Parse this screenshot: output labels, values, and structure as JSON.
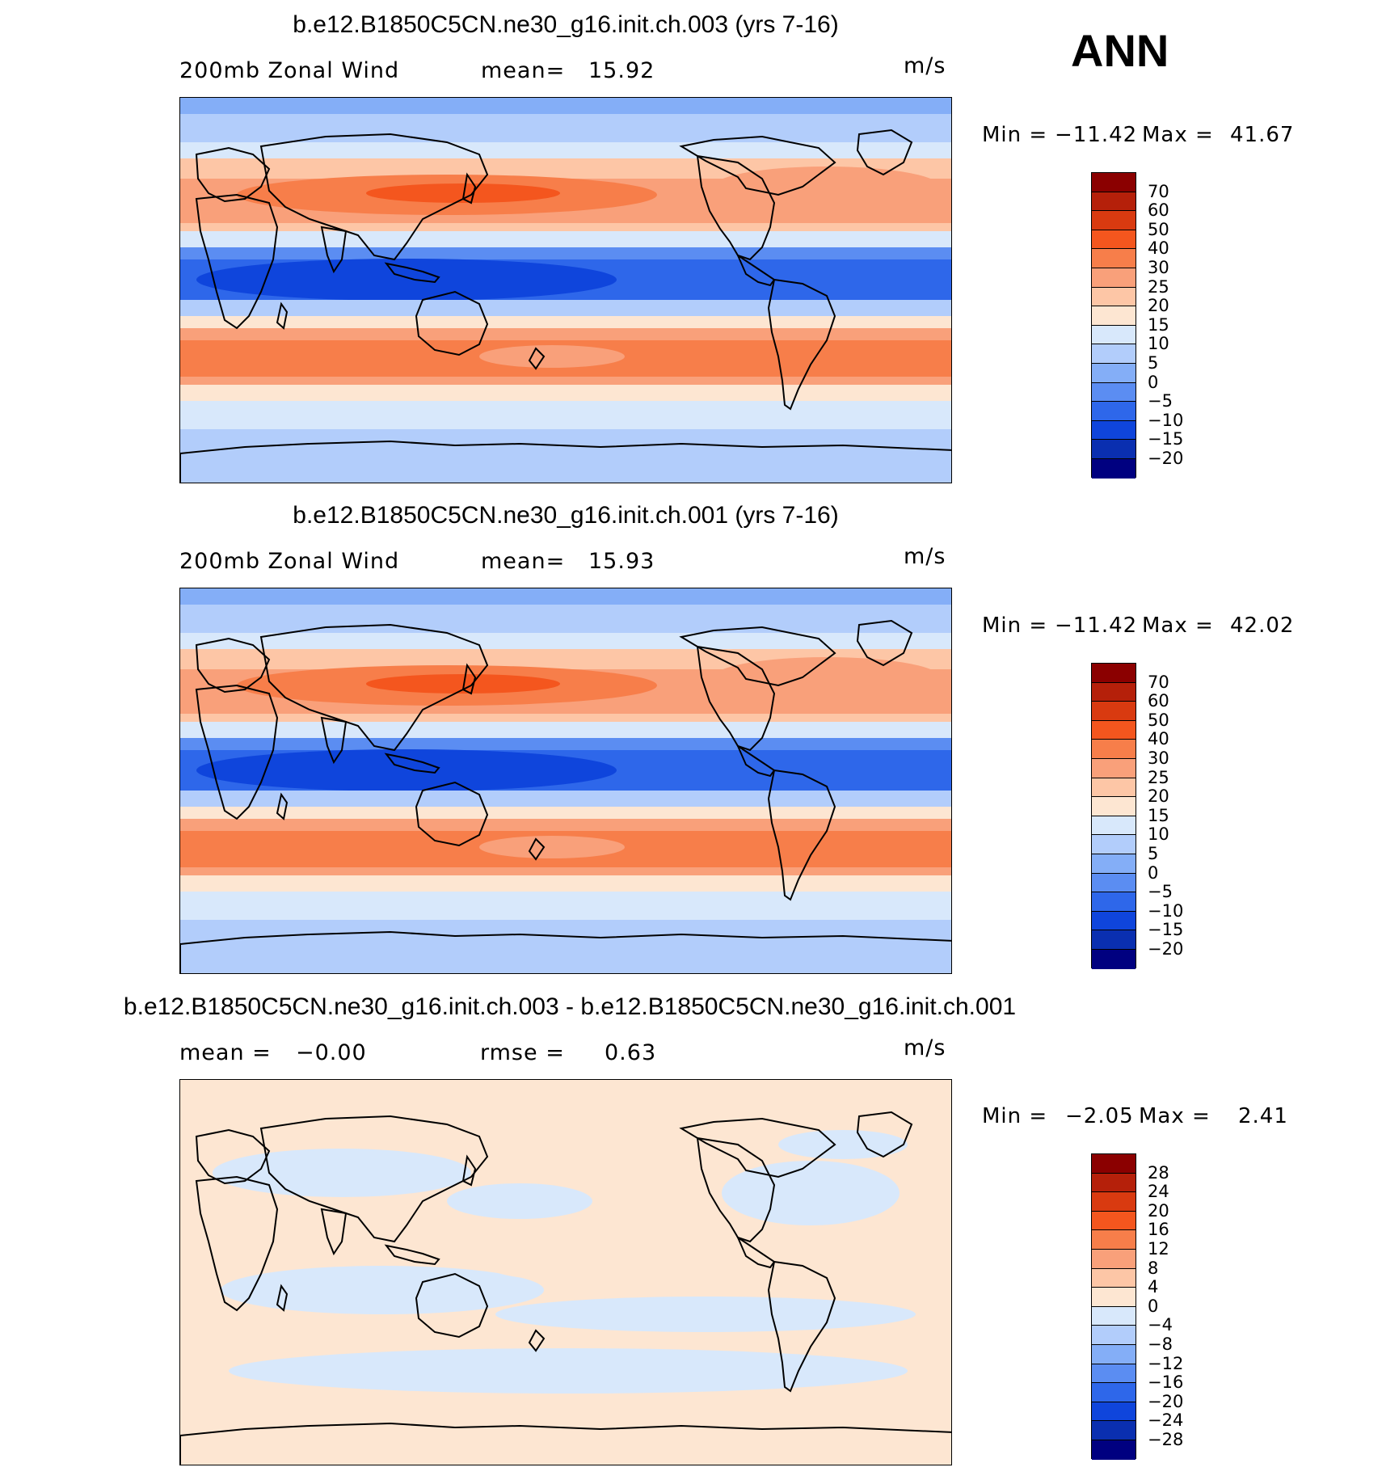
{
  "season": "ANN",
  "units": "m/s",
  "panels": [
    {
      "title": "b.e12.B1850C5CN.ne30_g16.init.ch.003 (yrs 7-16)",
      "left_label": "200mb Zonal Wind",
      "stat_label": "mean=",
      "stat_value": "15.92",
      "min_label": "Min =",
      "min_value": "−11.42",
      "max_label": "Max =",
      "max_value": "41.67",
      "colorbar": {
        "levels": [
          "70",
          "60",
          "50",
          "40",
          "30",
          "25",
          "20",
          "15",
          "10",
          "5",
          "0",
          "−5",
          "−10",
          "−15",
          "−20"
        ],
        "colors": [
          "#8b0000",
          "#b5200a",
          "#d93a10",
          "#f4561e",
          "#f77e4a",
          "#f9a07a",
          "#fdc6a6",
          "#fde6d2",
          "#d8e8fb",
          "#b2cdfb",
          "#84aef7",
          "#5b8df2",
          "#2e67ea",
          "#0f45dc",
          "#0a2fb0",
          "#000080"
        ]
      }
    },
    {
      "title": "b.e12.B1850C5CN.ne30_g16.init.ch.001 (yrs 7-16)",
      "left_label": "200mb Zonal Wind",
      "stat_label": "mean=",
      "stat_value": "15.93",
      "min_label": "Min =",
      "min_value": "−11.42",
      "max_label": "Max =",
      "max_value": "42.02",
      "colorbar": {
        "levels": [
          "70",
          "60",
          "50",
          "40",
          "30",
          "25",
          "20",
          "15",
          "10",
          "5",
          "0",
          "−5",
          "−10",
          "−15",
          "−20"
        ],
        "colors": [
          "#8b0000",
          "#b5200a",
          "#d93a10",
          "#f4561e",
          "#f77e4a",
          "#f9a07a",
          "#fdc6a6",
          "#fde6d2",
          "#d8e8fb",
          "#b2cdfb",
          "#84aef7",
          "#5b8df2",
          "#2e67ea",
          "#0f45dc",
          "#0a2fb0",
          "#000080"
        ]
      }
    },
    {
      "title": "b.e12.B1850C5CN.ne30_g16.init.ch.003 - b.e12.B1850C5CN.ne30_g16.init.ch.001",
      "left_label": "mean =",
      "left_value": "−0.00",
      "stat_label": "rmse =",
      "stat_value": "0.63",
      "min_label": "Min =",
      "min_value": "−2.05",
      "max_label": "Max =",
      "max_value": "2.41",
      "colorbar": {
        "levels": [
          "28",
          "24",
          "20",
          "16",
          "12",
          "8",
          "4",
          "0",
          "−4",
          "−8",
          "−12",
          "−16",
          "−20",
          "−24",
          "−28"
        ],
        "colors": [
          "#8b0000",
          "#b5200a",
          "#d93a10",
          "#f4561e",
          "#f77e4a",
          "#f9a07a",
          "#fdc6a6",
          "#fde6d2",
          "#d8e8fb",
          "#b2cdfb",
          "#84aef7",
          "#5b8df2",
          "#2e67ea",
          "#0f45dc",
          "#0a2fb0",
          "#000080"
        ]
      }
    }
  ],
  "map_colors": {
    "jet_core": "#f4561e",
    "jet": "#f77e4a",
    "jet_edge": "#f9a07a",
    "warm_light": "#fdc6a6",
    "warm_faint": "#fde6d2",
    "cool_faint": "#d8e8fb",
    "cool_light": "#b2cdfb",
    "cool": "#84aef7",
    "cool_mid": "#5b8df2",
    "easterly": "#2e67ea",
    "easterly_core": "#0f45dc",
    "coast": "#000000"
  }
}
